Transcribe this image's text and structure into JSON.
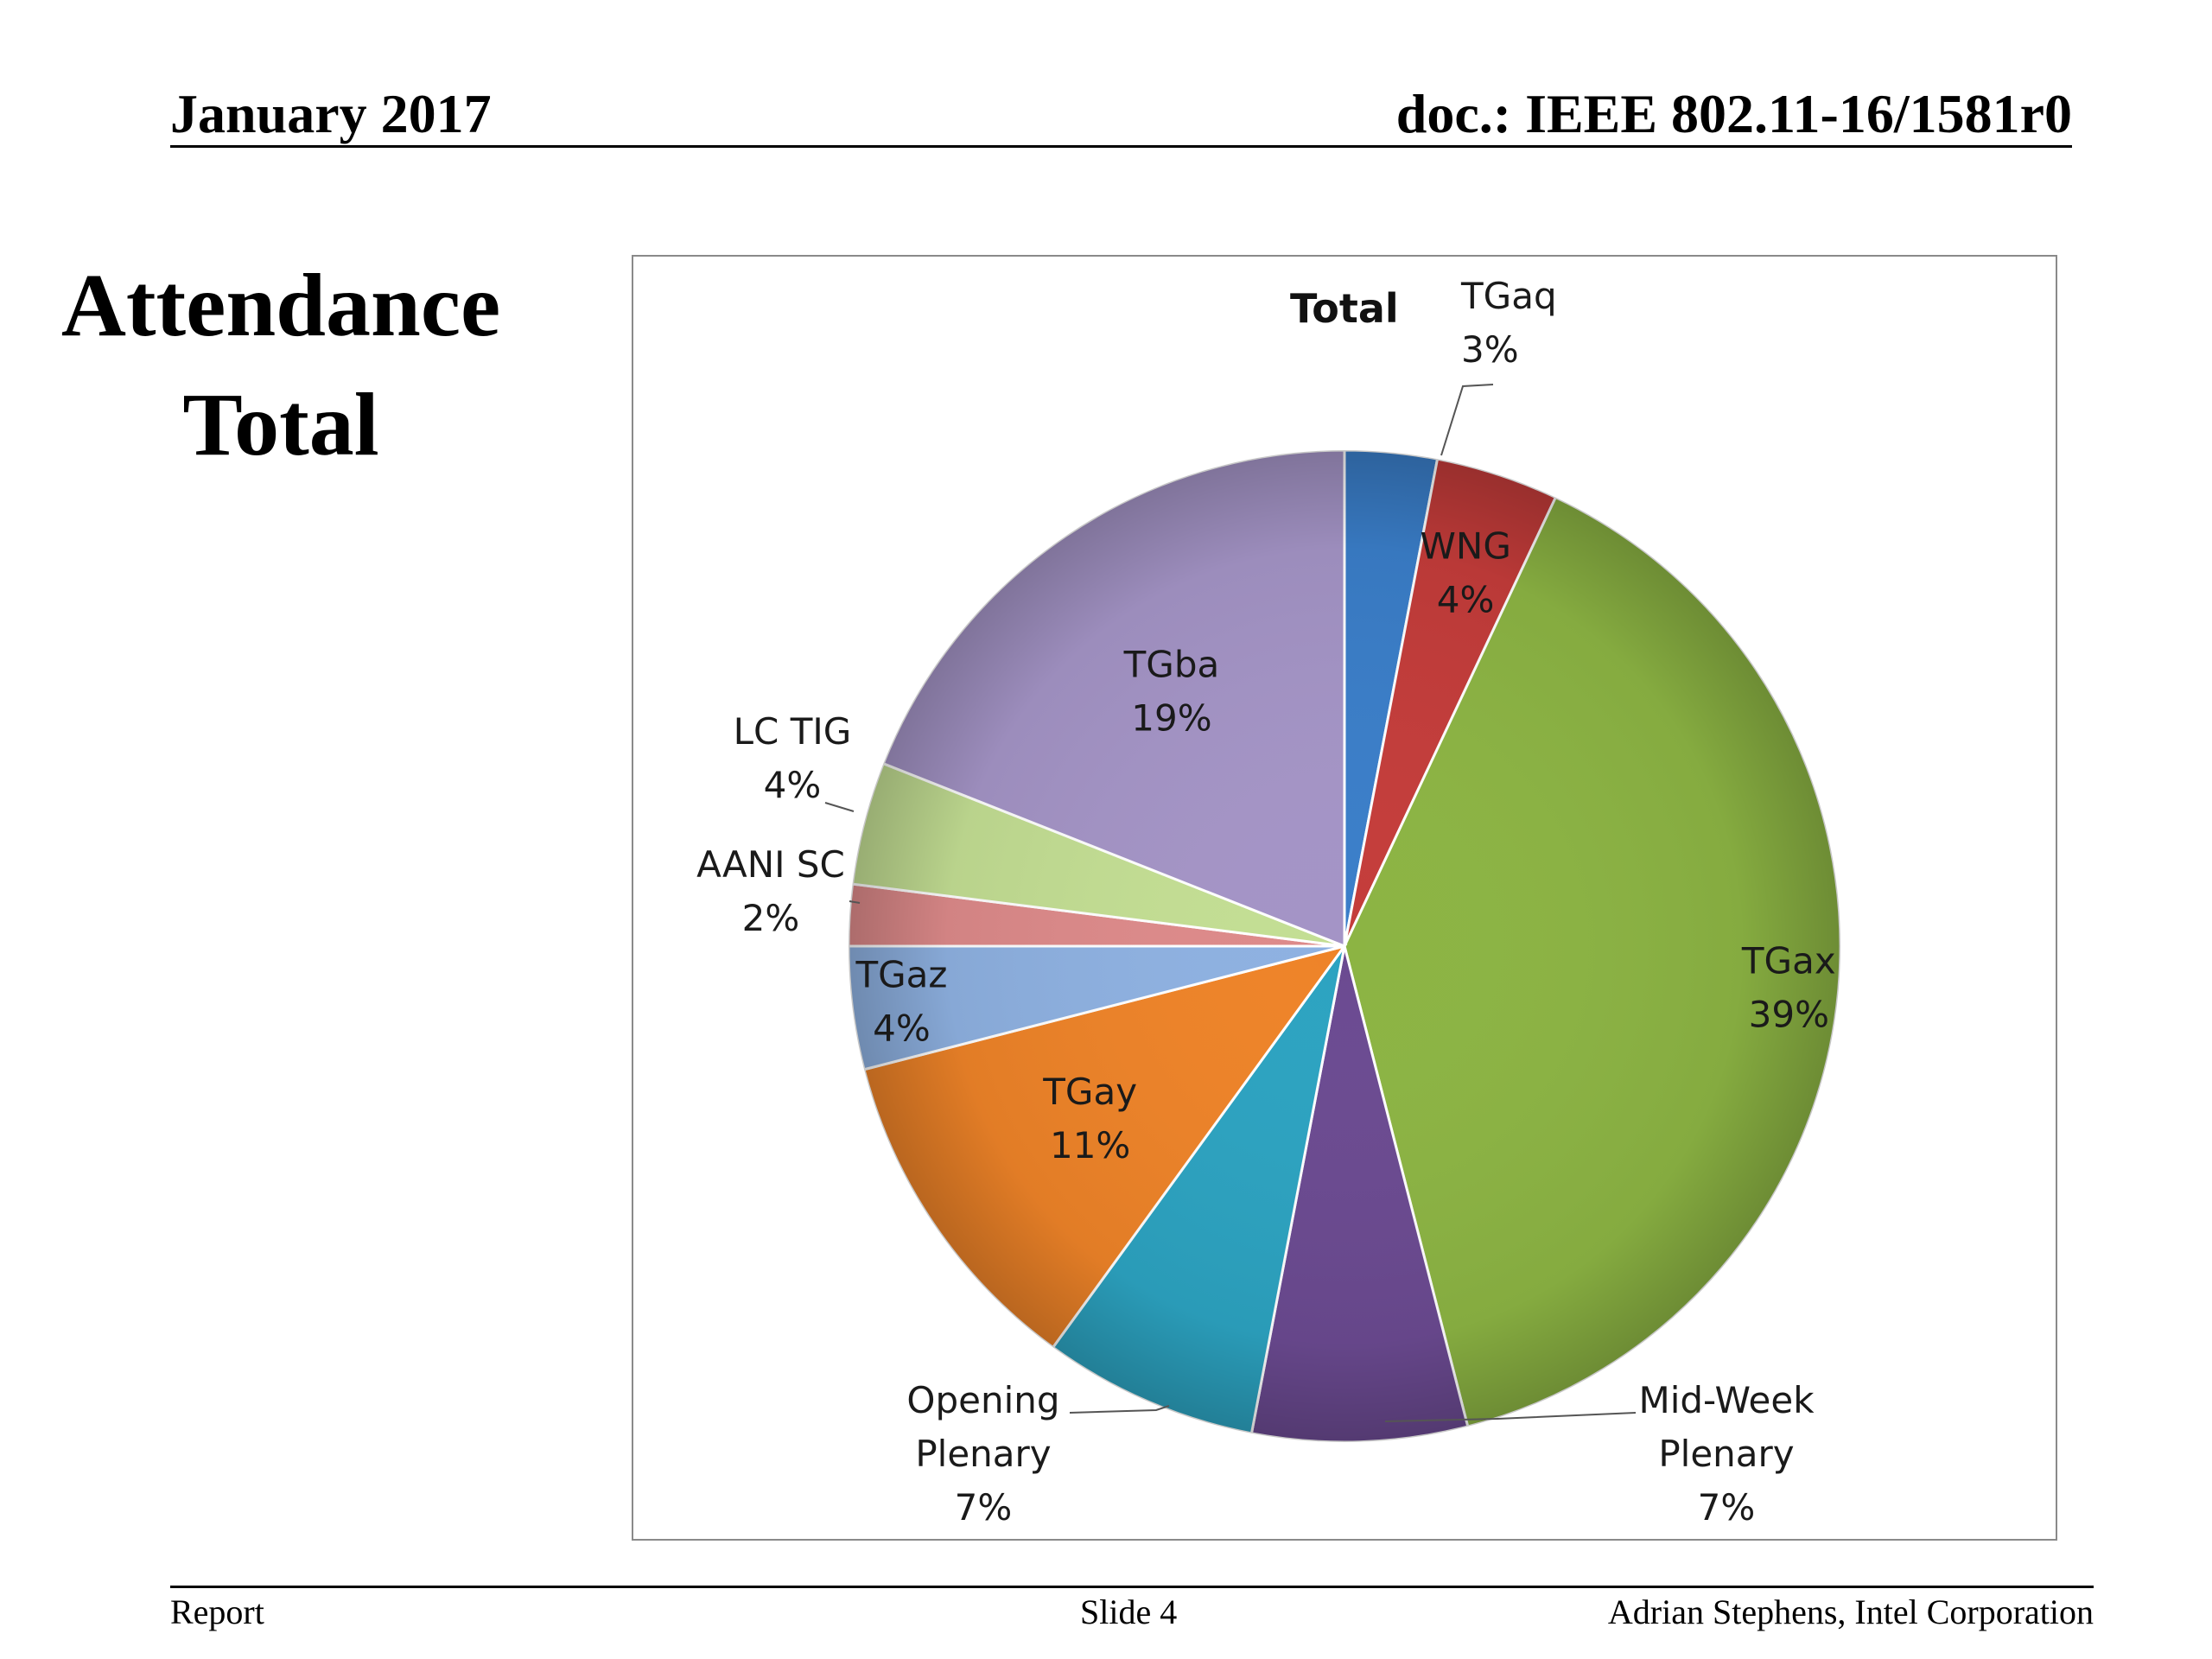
{
  "header": {
    "date": "January 2017",
    "doc_id": "doc.: IEEE 802.11-16/1581r0"
  },
  "title": {
    "line1": "Attendance",
    "line2": "Total"
  },
  "footer": {
    "left": "Report",
    "center": "Slide 4",
    "right": "Adrian Stephens, Intel Corporation"
  },
  "chart_data": {
    "type": "pie",
    "title": "Total",
    "unit": "%",
    "slices": [
      {
        "name": "TGaq",
        "value": 3,
        "label": "3%",
        "color": "#3a7ec9"
      },
      {
        "name": "WNG",
        "value": 4,
        "label": "4%",
        "color": "#c43c3a"
      },
      {
        "name": "TGax",
        "value": 39,
        "label": "39%",
        "color": "#8cb443"
      },
      {
        "name": "Mid-Week Plenary",
        "value": 7,
        "label": "7%",
        "color": "#6b4a91"
      },
      {
        "name": "Opening Plenary",
        "value": 7,
        "label": "7%",
        "color": "#2ca3c1"
      },
      {
        "name": "TGay",
        "value": 11,
        "label": "11%",
        "color": "#ee8328"
      },
      {
        "name": "TGaz",
        "value": 4,
        "label": "4%",
        "color": "#8eb1e1"
      },
      {
        "name": "AANI SC",
        "value": 2,
        "label": "2%",
        "color": "#dd8a8a"
      },
      {
        "name": "LC TIG",
        "value": 4,
        "label": "4%",
        "color": "#c3de93"
      },
      {
        "name": "TGba",
        "value": 19,
        "label": "19%",
        "color": "#a494c6"
      }
    ]
  }
}
